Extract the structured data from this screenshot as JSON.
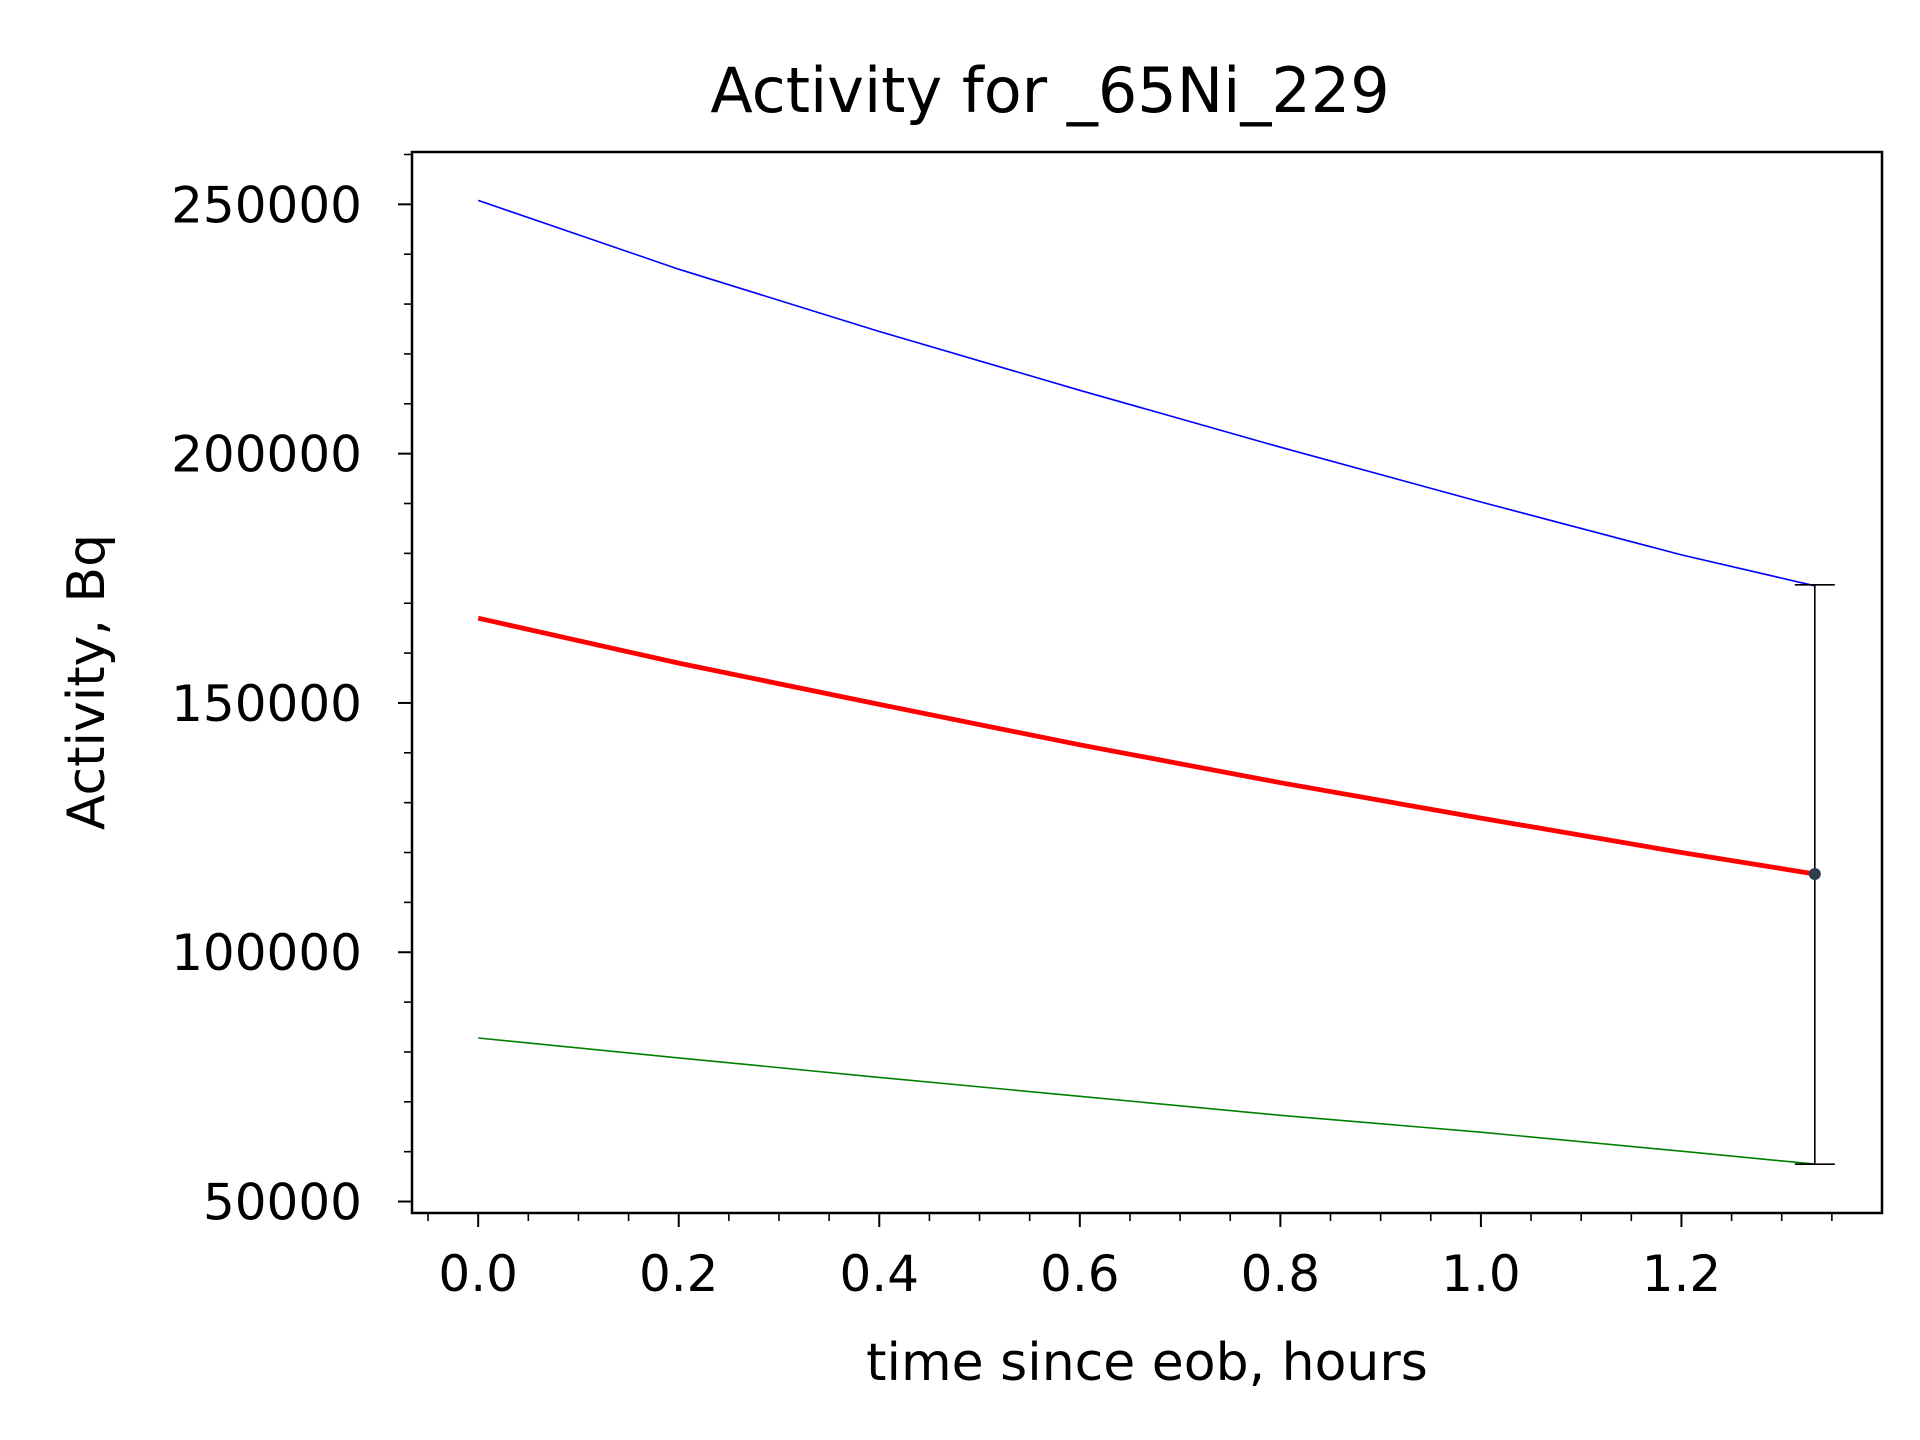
{
  "chart_data": {
    "type": "line",
    "title": "Activity for _65Ni_229",
    "xlabel": "time since eob, hours",
    "ylabel": "Activity, Bq",
    "xlim": [
      -0.066,
      1.4
    ],
    "ylim": [
      47700,
      260500
    ],
    "x_ticks": [
      "0.0",
      "0.2",
      "0.4",
      "0.6",
      "0.8",
      "1.0",
      "1.2"
    ],
    "y_ticks": [
      "50000",
      "100000",
      "150000",
      "200000",
      "250000"
    ],
    "grid": false,
    "series": [
      {
        "color": "#0000ff",
        "line_width": 1,
        "x": [
          0,
          0.2,
          0.4,
          0.6,
          0.8,
          1.0,
          1.2,
          1.333
        ],
        "y": [
          250800,
          237000,
          224500,
          212700,
          201300,
          190300,
          179700,
          173500
        ]
      },
      {
        "color": "#ff0000",
        "line_width": 3,
        "x": [
          0,
          0.2,
          0.4,
          0.6,
          0.8,
          1.0,
          1.2,
          1.333
        ],
        "y": [
          167000,
          158000,
          149700,
          141600,
          134000,
          126900,
          120000,
          115700
        ]
      },
      {
        "color": "#008000",
        "line_width": 1,
        "x": [
          0,
          0.2,
          0.4,
          0.6,
          0.8,
          1.0,
          1.2,
          1.333
        ],
        "y": [
          82800,
          78800,
          74900,
          71100,
          67300,
          63900,
          60100,
          57500
        ]
      }
    ],
    "errorbar": {
      "x": 1.333,
      "y": 115700,
      "ymin": 57500,
      "ymax": 173700,
      "color": "#000000",
      "marker_color": "#2f3e4e"
    }
  }
}
